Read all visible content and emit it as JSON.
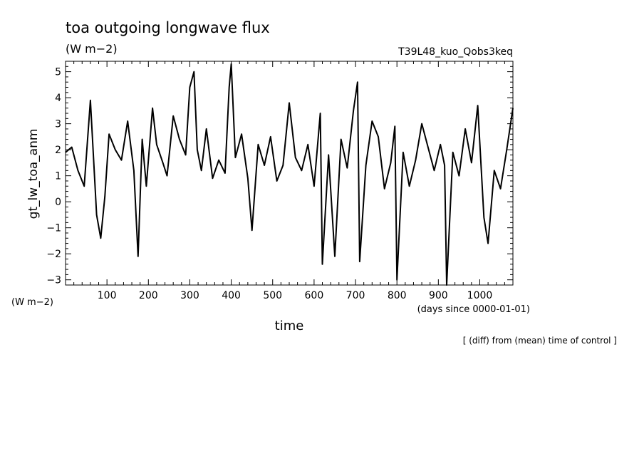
{
  "chart_data": {
    "type": "line",
    "title": "toa outgoing longwave flux",
    "units_top": "(W m−2)",
    "experiment": "T39L48_kuo_Qobs3keq",
    "ylabel": "gt_lw_toa_anm",
    "units_left": "(W m−2)",
    "xlabel": "time",
    "xunits": "(days since 0000-01-01)",
    "note": "[ (diff) from (mean) time of control ]",
    "xlim": [
      0,
      1080
    ],
    "ylim": [
      -3.2,
      5.4
    ],
    "x_ticks": [
      100,
      200,
      300,
      400,
      500,
      600,
      700,
      800,
      900,
      1000
    ],
    "y_ticks": [
      -3,
      -2,
      -1,
      0,
      1,
      2,
      3,
      4,
      5
    ],
    "grid": false,
    "series": [
      {
        "x": [
          0,
          15,
          30,
          45,
          60,
          75,
          85,
          95,
          105,
          120,
          135,
          150,
          165,
          175,
          185,
          195,
          210,
          220,
          235,
          245,
          260,
          275,
          290,
          300,
          310,
          318,
          328,
          340,
          355,
          370,
          385,
          395,
          400,
          410,
          425,
          440,
          450,
          465,
          480,
          495,
          510,
          525,
          540,
          555,
          570,
          585,
          600,
          615,
          620,
          635,
          650,
          665,
          680,
          695,
          705,
          710,
          725,
          740,
          755,
          770,
          785,
          795,
          800,
          815,
          830,
          845,
          860,
          875,
          890,
          905,
          915,
          920,
          935,
          950,
          965,
          980,
          995,
          1010,
          1020,
          1035,
          1050,
          1065,
          1080
        ],
        "y": [
          1.9,
          2.1,
          1.2,
          0.6,
          3.9,
          -0.5,
          -1.4,
          0.2,
          2.6,
          2.0,
          1.6,
          3.1,
          1.2,
          -2.1,
          2.4,
          0.6,
          3.6,
          2.2,
          1.5,
          1.0,
          3.3,
          2.4,
          1.8,
          4.4,
          5.0,
          2.0,
          1.2,
          2.8,
          0.9,
          1.6,
          1.1,
          4.4,
          5.3,
          1.7,
          2.6,
          0.9,
          -1.1,
          2.2,
          1.4,
          2.5,
          0.8,
          1.4,
          3.8,
          1.7,
          1.2,
          2.2,
          0.6,
          3.4,
          -2.4,
          1.8,
          -2.1,
          2.4,
          1.3,
          3.5,
          4.6,
          -2.3,
          1.4,
          3.1,
          2.5,
          0.5,
          1.5,
          2.9,
          -3.0,
          1.9,
          0.6,
          1.6,
          3.0,
          2.1,
          1.2,
          2.2,
          1.4,
          -3.2,
          1.9,
          1.0,
          2.8,
          1.5,
          3.7,
          -0.6,
          -1.6,
          1.2,
          0.5,
          2.0,
          3.6
        ]
      }
    ]
  }
}
